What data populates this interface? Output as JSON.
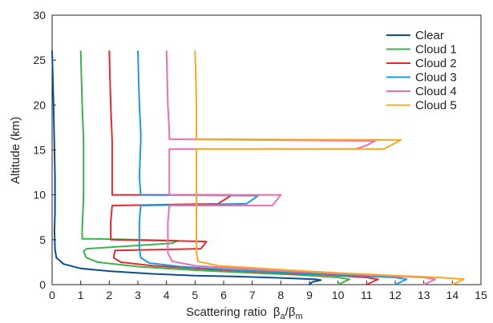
{
  "chart_data": {
    "type": "line",
    "xlabel": "Scattering ratio",
    "xlabel_symbol": {
      "base": "β",
      "sub_a": "a",
      "slash": "/",
      "sub_m": "m"
    },
    "ylabel": "Altitude (km)",
    "xlim": [
      0,
      15
    ],
    "ylim": [
      0,
      30
    ],
    "x_ticks": [
      0,
      1,
      2,
      3,
      4,
      5,
      6,
      7,
      8,
      9,
      10,
      11,
      12,
      13,
      14,
      15
    ],
    "y_ticks": [
      0,
      5,
      10,
      15,
      20,
      25,
      30
    ],
    "grid": false,
    "legend_position": "top-right",
    "series": [
      {
        "name": "Clear",
        "color": "#0b4d8f",
        "points": [
          [
            0.0,
            26
          ],
          [
            0.05,
            20
          ],
          [
            0.08,
            15
          ],
          [
            0.1,
            12
          ],
          [
            0.1,
            10
          ],
          [
            0.1,
            8
          ],
          [
            0.08,
            6
          ],
          [
            0.1,
            4
          ],
          [
            0.15,
            3
          ],
          [
            0.4,
            2.3
          ],
          [
            1.0,
            1.8
          ],
          [
            2.0,
            1.5
          ],
          [
            3.5,
            1.2
          ],
          [
            5.0,
            1.0
          ],
          [
            6.5,
            0.9
          ],
          [
            8.0,
            0.75
          ],
          [
            9.2,
            0.6
          ],
          [
            9.4,
            0.5
          ],
          [
            9.1,
            0.3
          ],
          [
            9.0,
            0.0
          ]
        ]
      },
      {
        "name": "Cloud 1",
        "color": "#3bb34a",
        "points": [
          [
            1.0,
            26
          ],
          [
            1.05,
            20
          ],
          [
            1.1,
            16
          ],
          [
            1.1,
            15
          ],
          [
            1.1,
            10
          ],
          [
            1.05,
            6
          ],
          [
            1.05,
            5.1
          ],
          [
            1.5,
            5.1
          ],
          [
            4.4,
            4.9
          ],
          [
            4.2,
            4.6
          ],
          [
            1.2,
            4.0
          ],
          [
            1.1,
            3.7
          ],
          [
            1.2,
            3.0
          ],
          [
            1.6,
            2.5
          ],
          [
            3.0,
            2.0
          ],
          [
            5.0,
            1.6
          ],
          [
            7.0,
            1.3
          ],
          [
            8.5,
            1.1
          ],
          [
            10.0,
            0.8
          ],
          [
            10.4,
            0.6
          ],
          [
            10.2,
            0.3
          ],
          [
            10.0,
            0.0
          ]
        ]
      },
      {
        "name": "Cloud 2",
        "color": "#e12b30",
        "points": [
          [
            2.0,
            26
          ],
          [
            2.05,
            20
          ],
          [
            2.1,
            16
          ],
          [
            2.1,
            10.0
          ],
          [
            6.3,
            10.0
          ],
          [
            5.8,
            9.0
          ],
          [
            2.1,
            8.8
          ],
          [
            2.05,
            7
          ],
          [
            2.05,
            5.0
          ],
          [
            5.4,
            4.8
          ],
          [
            5.2,
            4.0
          ],
          [
            2.2,
            3.8
          ],
          [
            2.15,
            3.0
          ],
          [
            2.4,
            2.5
          ],
          [
            3.5,
            2.1
          ],
          [
            5.5,
            1.7
          ],
          [
            7.5,
            1.4
          ],
          [
            9.5,
            1.1
          ],
          [
            11.0,
            0.8
          ],
          [
            11.4,
            0.6
          ],
          [
            11.2,
            0.3
          ],
          [
            11.0,
            0.0
          ]
        ]
      },
      {
        "name": "Cloud 3",
        "color": "#1f9ad9",
        "points": [
          [
            3.0,
            26
          ],
          [
            3.05,
            20
          ],
          [
            3.1,
            17
          ],
          [
            3.1,
            16
          ],
          [
            3.05,
            12
          ],
          [
            3.1,
            10
          ],
          [
            7.2,
            9.9
          ],
          [
            6.8,
            9.0
          ],
          [
            3.1,
            8.8
          ],
          [
            3.05,
            7
          ],
          [
            3.05,
            5.5
          ],
          [
            3.05,
            4.0
          ],
          [
            3.1,
            3.0
          ],
          [
            3.4,
            2.4
          ],
          [
            4.5,
            2.0
          ],
          [
            6.5,
            1.6
          ],
          [
            8.5,
            1.3
          ],
          [
            10.5,
            1.0
          ],
          [
            12.0,
            0.8
          ],
          [
            12.4,
            0.6
          ],
          [
            12.2,
            0.3
          ],
          [
            12.0,
            0.0
          ]
        ]
      },
      {
        "name": "Cloud 4",
        "color": "#ec6fb0",
        "points": [
          [
            4.0,
            26
          ],
          [
            4.05,
            20
          ],
          [
            4.1,
            17
          ],
          [
            4.1,
            16.2
          ],
          [
            11.3,
            16.0
          ],
          [
            11.0,
            15.5
          ],
          [
            10.6,
            15.1
          ],
          [
            4.1,
            15.1
          ],
          [
            4.1,
            12
          ],
          [
            4.1,
            10.0
          ],
          [
            8.0,
            10.0
          ],
          [
            7.7,
            8.8
          ],
          [
            4.1,
            8.8
          ],
          [
            4.05,
            7
          ],
          [
            4.05,
            5.0
          ],
          [
            4.05,
            3.5
          ],
          [
            4.2,
            2.6
          ],
          [
            5.0,
            2.1
          ],
          [
            7.0,
            1.7
          ],
          [
            9.5,
            1.3
          ],
          [
            11.5,
            1.0
          ],
          [
            13.0,
            0.8
          ],
          [
            13.4,
            0.6
          ],
          [
            13.2,
            0.3
          ],
          [
            13.0,
            0.0
          ]
        ]
      },
      {
        "name": "Cloud 5",
        "color": "#f7a823",
        "points": [
          [
            5.0,
            26
          ],
          [
            5.05,
            20
          ],
          [
            5.05,
            17
          ],
          [
            5.05,
            16.2
          ],
          [
            12.2,
            16.1
          ],
          [
            11.9,
            15.6
          ],
          [
            11.6,
            15.1
          ],
          [
            5.05,
            15.1
          ],
          [
            5.05,
            12
          ],
          [
            5.05,
            8
          ],
          [
            5.05,
            5
          ],
          [
            5.05,
            3.5
          ],
          [
            5.1,
            2.6
          ],
          [
            5.8,
            2.1
          ],
          [
            7.8,
            1.7
          ],
          [
            10.0,
            1.3
          ],
          [
            12.0,
            1.0
          ],
          [
            13.5,
            0.8
          ],
          [
            14.4,
            0.6
          ],
          [
            14.2,
            0.3
          ],
          [
            14.0,
            0.0
          ]
        ]
      }
    ]
  }
}
